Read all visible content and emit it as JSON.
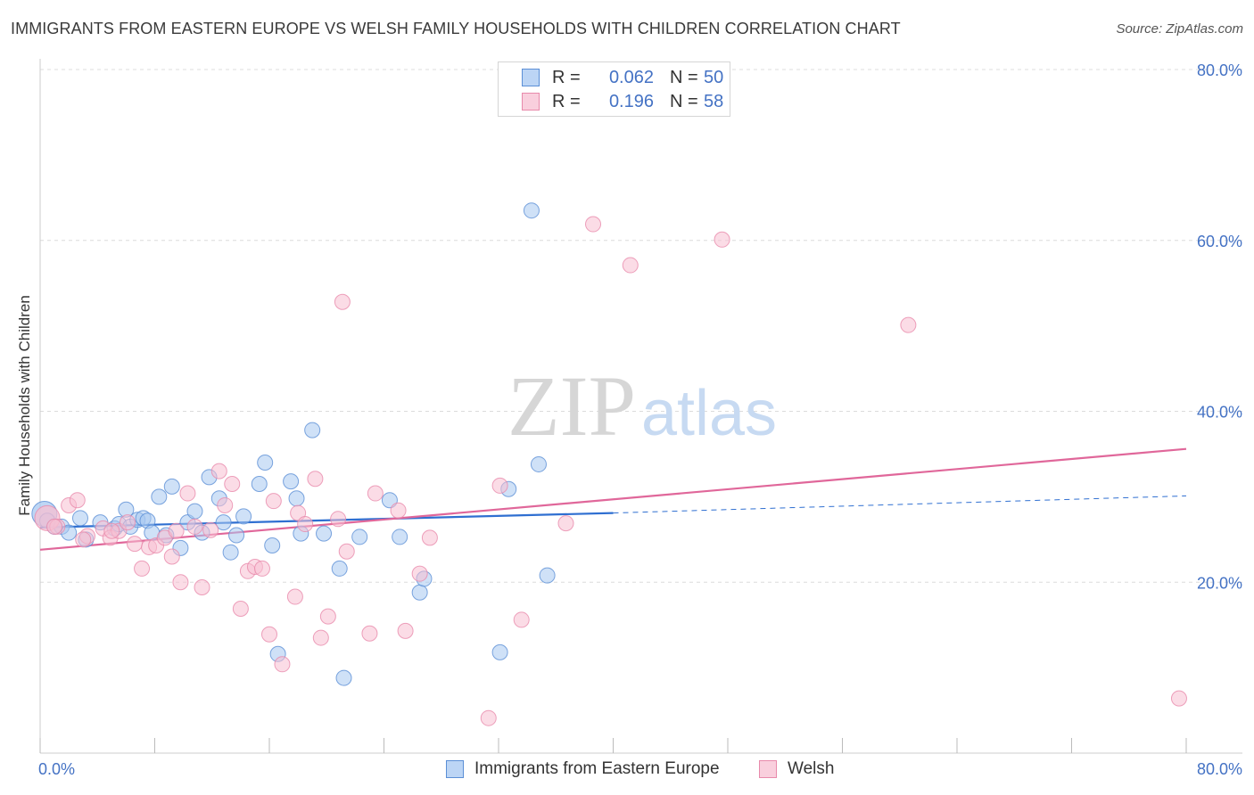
{
  "chart_data": {
    "type": "scatter",
    "title": "IMMIGRANTS FROM EASTERN EUROPE VS WELSH FAMILY HOUSEHOLDS WITH CHILDREN CORRELATION CHART",
    "source": "Source: ZipAtlas.com",
    "xlabel": "",
    "ylabel": "Family Households with Children",
    "xlim": [
      0,
      80
    ],
    "ylim": [
      0,
      80
    ],
    "x_tick_labels": [
      "0.0%",
      "80.0%"
    ],
    "y_tick_labels": [
      "20.0%",
      "40.0%",
      "60.0%",
      "80.0%"
    ],
    "y_ticks": [
      20,
      40,
      60,
      80
    ],
    "grid": true,
    "watermark": "ZIPatlas",
    "legend": {
      "rows": [
        {
          "r_label": "R =",
          "r_value": "0.062",
          "n_label": "N =",
          "n_value": "50"
        },
        {
          "r_label": "R =",
          "r_value": "0.196",
          "n_label": "N =",
          "n_value": "58"
        }
      ]
    },
    "series": [
      {
        "name": "Immigrants from Eastern Europe",
        "color": "#a8c8f0",
        "stroke": "#5b8fd6",
        "line_color": "#2f6fd1",
        "trend": {
          "x0": 0,
          "y0": 26.4,
          "x1": 40,
          "y1": 28.1,
          "dash_to_x": 80,
          "dash_to_y": 30.1
        },
        "points": [
          [
            0.3,
            28.0
          ],
          [
            0.5,
            27.2
          ],
          [
            1.0,
            26.5
          ],
          [
            1.5,
            26.5
          ],
          [
            2.0,
            25.8
          ],
          [
            2.8,
            27.5
          ],
          [
            3.2,
            25.0
          ],
          [
            4.2,
            27.0
          ],
          [
            5.2,
            26.3
          ],
          [
            5.5,
            26.8
          ],
          [
            6.0,
            28.5
          ],
          [
            6.3,
            26.5
          ],
          [
            6.8,
            27.3
          ],
          [
            7.2,
            27.5
          ],
          [
            7.5,
            27.2
          ],
          [
            7.8,
            25.8
          ],
          [
            8.3,
            30.0
          ],
          [
            8.8,
            25.5
          ],
          [
            9.2,
            31.2
          ],
          [
            9.8,
            24.0
          ],
          [
            10.3,
            27.0
          ],
          [
            10.8,
            28.3
          ],
          [
            11.3,
            25.8
          ],
          [
            11.8,
            32.3
          ],
          [
            12.5,
            29.8
          ],
          [
            12.8,
            27.0
          ],
          [
            13.3,
            23.5
          ],
          [
            13.7,
            25.5
          ],
          [
            14.2,
            27.7
          ],
          [
            15.3,
            31.5
          ],
          [
            15.7,
            34.0
          ],
          [
            16.2,
            24.3
          ],
          [
            16.6,
            11.6
          ],
          [
            17.5,
            31.8
          ],
          [
            17.9,
            29.8
          ],
          [
            18.2,
            25.7
          ],
          [
            19.0,
            37.8
          ],
          [
            19.8,
            25.7
          ],
          [
            20.9,
            21.6
          ],
          [
            21.2,
            8.8
          ],
          [
            22.3,
            25.3
          ],
          [
            24.4,
            29.6
          ],
          [
            25.1,
            25.3
          ],
          [
            26.5,
            18.8
          ],
          [
            26.8,
            20.4
          ],
          [
            32.1,
            11.8
          ],
          [
            32.7,
            30.9
          ],
          [
            34.3,
            63.5
          ],
          [
            34.8,
            33.8
          ],
          [
            35.4,
            20.8
          ]
        ]
      },
      {
        "name": "Welsh",
        "color": "#f7bfd2",
        "stroke": "#e88aab",
        "line_color": "#e0679a",
        "trend": {
          "x0": 0,
          "y0": 23.8,
          "x1": 80,
          "y1": 35.6
        },
        "points": [
          [
            0.5,
            27.5
          ],
          [
            1.2,
            26.5
          ],
          [
            2.0,
            29.0
          ],
          [
            2.6,
            29.6
          ],
          [
            3.3,
            25.4
          ],
          [
            4.4,
            26.3
          ],
          [
            4.9,
            25.2
          ],
          [
            5.5,
            26.0
          ],
          [
            6.1,
            27.0
          ],
          [
            6.6,
            24.5
          ],
          [
            7.1,
            21.6
          ],
          [
            7.6,
            24.1
          ],
          [
            8.1,
            24.3
          ],
          [
            8.7,
            25.2
          ],
          [
            9.2,
            23.0
          ],
          [
            9.5,
            26.0
          ],
          [
            9.8,
            20.0
          ],
          [
            10.3,
            30.4
          ],
          [
            10.8,
            26.5
          ],
          [
            11.3,
            19.4
          ],
          [
            11.9,
            26.1
          ],
          [
            12.5,
            33.0
          ],
          [
            12.9,
            29.0
          ],
          [
            13.4,
            31.5
          ],
          [
            14.0,
            16.9
          ],
          [
            14.5,
            21.3
          ],
          [
            15.0,
            21.8
          ],
          [
            15.5,
            21.6
          ],
          [
            16.0,
            13.9
          ],
          [
            16.3,
            29.5
          ],
          [
            16.9,
            10.4
          ],
          [
            17.8,
            18.3
          ],
          [
            18.0,
            28.1
          ],
          [
            18.5,
            26.8
          ],
          [
            19.2,
            32.1
          ],
          [
            19.6,
            13.5
          ],
          [
            20.1,
            16.0
          ],
          [
            20.8,
            27.4
          ],
          [
            21.1,
            52.8
          ],
          [
            21.4,
            23.6
          ],
          [
            23.0,
            14.0
          ],
          [
            23.4,
            30.4
          ],
          [
            25.0,
            28.4
          ],
          [
            25.5,
            14.3
          ],
          [
            26.5,
            21.0
          ],
          [
            27.2,
            25.2
          ],
          [
            31.3,
            4.1
          ],
          [
            32.1,
            31.3
          ],
          [
            33.6,
            15.6
          ],
          [
            36.7,
            26.9
          ],
          [
            38.6,
            61.9
          ],
          [
            41.2,
            57.1
          ],
          [
            47.6,
            60.1
          ],
          [
            60.6,
            50.1
          ],
          [
            79.5,
            6.4
          ],
          [
            1.0,
            26.5
          ],
          [
            3.0,
            25.0
          ],
          [
            5.0,
            26.0
          ]
        ]
      }
    ]
  }
}
